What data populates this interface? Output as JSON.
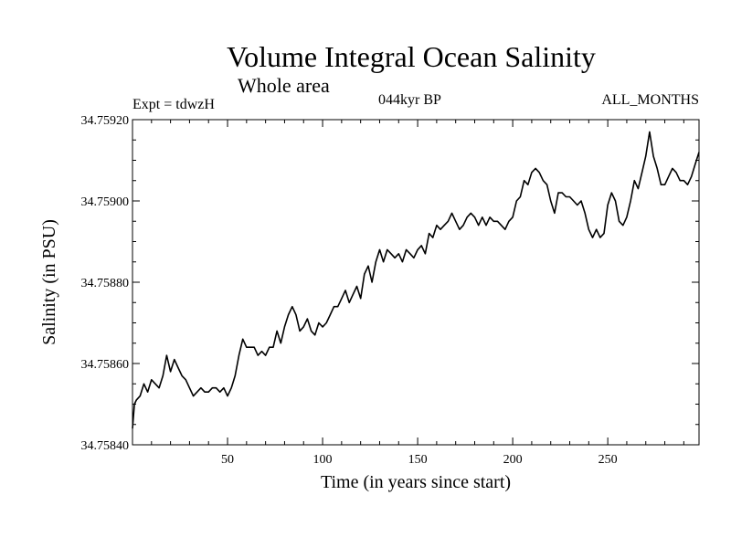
{
  "header": {
    "title": "Volume Integral Ocean Salinity",
    "subtitle": "Whole area",
    "experiment": "Expt = tdwzH",
    "period": "044kyr BP",
    "months": "ALL_MONTHS"
  },
  "chart_data": {
    "type": "line",
    "title": "Volume Integral Ocean Salinity",
    "subtitle": "Whole area",
    "xlabel": "Time (in years since start)",
    "ylabel": "Salinity (in PSU)",
    "xlim": [
      0,
      298
    ],
    "ylim": [
      34.7584,
      34.7592
    ],
    "xticks": [
      50,
      100,
      150,
      200,
      250
    ],
    "xtick_labels": [
      "50",
      "100",
      "150",
      "200",
      "250"
    ],
    "yticks": [
      34.7584,
      34.7586,
      34.7588,
      34.759,
      34.7592
    ],
    "ytick_labels": [
      "34.75840",
      "34.75860",
      "34.75880",
      "34.75900",
      "34.75920"
    ],
    "line_color": "#000000",
    "series": [
      {
        "x": [
          0,
          1,
          2,
          4,
          6,
          8,
          10,
          12,
          14,
          16,
          18,
          20,
          22,
          24,
          26,
          28,
          30,
          32,
          34,
          36,
          38,
          40,
          42,
          44,
          46,
          48,
          50,
          52,
          54,
          56,
          58,
          60,
          62,
          64,
          66,
          68,
          70,
          72,
          74,
          76,
          78,
          80,
          82,
          84,
          86,
          88,
          90,
          92,
          94,
          96,
          98,
          100,
          102,
          104,
          106,
          108,
          110,
          112,
          114,
          116,
          118,
          120,
          122,
          124,
          126,
          128,
          130,
          132,
          134,
          136,
          138,
          140,
          142,
          144,
          146,
          148,
          150,
          152,
          154,
          156,
          158,
          160,
          162,
          164,
          166,
          168,
          170,
          172,
          174,
          176,
          178,
          180,
          182,
          184,
          186,
          188,
          190,
          192,
          194,
          196,
          198,
          200,
          202,
          204,
          206,
          208,
          210,
          212,
          214,
          216,
          218,
          220,
          222,
          224,
          226,
          228,
          230,
          232,
          234,
          236,
          238,
          240,
          242,
          244,
          246,
          248,
          250,
          252,
          254,
          256,
          258,
          260,
          262,
          264,
          266,
          268,
          270,
          272,
          274,
          276,
          278,
          280,
          282,
          284,
          286,
          288,
          290,
          292,
          294,
          296,
          298
        ],
        "values": [
          34.75844,
          34.7585,
          34.75851,
          34.75852,
          34.75855,
          34.75853,
          34.75856,
          34.75855,
          34.75854,
          34.75857,
          34.75862,
          34.75858,
          34.75861,
          34.75859,
          34.75857,
          34.75856,
          34.75854,
          34.75852,
          34.75853,
          34.75854,
          34.75853,
          34.75853,
          34.75854,
          34.75854,
          34.75853,
          34.75854,
          34.75852,
          34.75854,
          34.75857,
          34.75862,
          34.75866,
          34.75864,
          34.75864,
          34.75864,
          34.75862,
          34.75863,
          34.75862,
          34.75864,
          34.75864,
          34.75868,
          34.75865,
          34.75869,
          34.75872,
          34.75874,
          34.75872,
          34.75868,
          34.75869,
          34.75871,
          34.75868,
          34.75867,
          34.7587,
          34.75869,
          34.7587,
          34.75872,
          34.75874,
          34.75874,
          34.75876,
          34.75878,
          34.75875,
          34.75877,
          34.75879,
          34.75876,
          34.75882,
          34.75884,
          34.7588,
          34.75885,
          34.75888,
          34.75885,
          34.75888,
          34.75887,
          34.75886,
          34.75887,
          34.75885,
          34.75888,
          34.75887,
          34.75886,
          34.75888,
          34.75889,
          34.75887,
          34.75892,
          34.75891,
          34.75894,
          34.75893,
          34.75894,
          34.75895,
          34.75897,
          34.75895,
          34.75893,
          34.75894,
          34.75896,
          34.75897,
          34.75896,
          34.75894,
          34.75896,
          34.75894,
          34.75896,
          34.75895,
          34.75895,
          34.75894,
          34.75893,
          34.75895,
          34.75896,
          34.759,
          34.75901,
          34.75905,
          34.75904,
          34.75907,
          34.75908,
          34.75907,
          34.75905,
          34.75904,
          34.759,
          34.75897,
          34.75902,
          34.75902,
          34.75901,
          34.75901,
          34.759,
          34.75899,
          34.759,
          34.75897,
          34.75893,
          34.75891,
          34.75893,
          34.75891,
          34.75892,
          34.75899,
          34.75902,
          34.759,
          34.75895,
          34.75894,
          34.75896,
          34.759,
          34.75905,
          34.75903,
          34.75907,
          34.75911,
          34.75917,
          34.75911,
          34.75908,
          34.75904,
          34.75904,
          34.75906,
          34.75908,
          34.75907,
          34.75905,
          34.75905,
          34.75904,
          34.75906,
          34.75909,
          34.75912
        ]
      }
    ]
  }
}
